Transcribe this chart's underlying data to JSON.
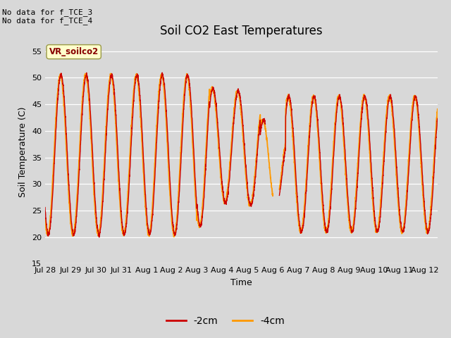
{
  "title": "Soil CO2 East Temperatures",
  "xlabel": "Time",
  "ylabel": "Soil Temperature (C)",
  "ylim": [
    15,
    57
  ],
  "yticks": [
    15,
    20,
    25,
    30,
    35,
    40,
    45,
    50,
    55
  ],
  "bg_color": "#d8d8d8",
  "color_2cm": "#cc0000",
  "color_4cm": "#ff9900",
  "legend_label_2cm": "-2cm",
  "legend_label_4cm": "-4cm",
  "annotation_top_left": "No data for f_TCE_3\nNo data for f_TCE_4",
  "sensor_label": "VR_soilco2",
  "xtick_labels": [
    "Jul 28",
    "Jul 29",
    "Jul 30",
    "Jul 31",
    "Aug 1",
    "Aug 2",
    "Aug 3",
    "Aug 4",
    "Aug 5",
    "Aug 6",
    "Aug 7",
    "Aug 8",
    "Aug 9",
    "Aug 10",
    "Aug 11",
    "Aug 12"
  ],
  "title_fontsize": 12,
  "label_fontsize": 9,
  "tick_fontsize": 8
}
